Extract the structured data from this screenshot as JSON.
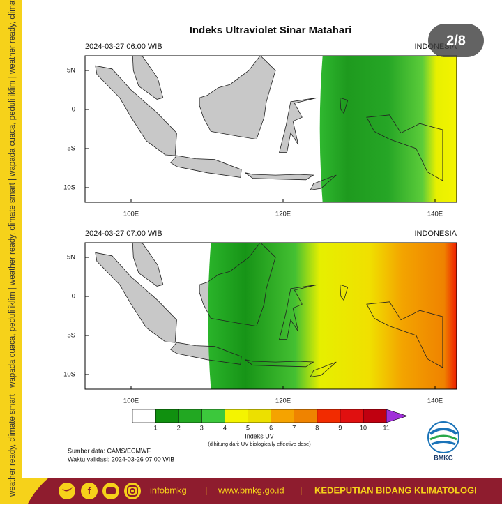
{
  "side_banner": "weather ready, climate smart | wapada cuaca, peduli iklim | weather ready, climate smart | wapada cuaca, peduli iklim | weather ready, climate smart | wapada cuaca, peduli iklim",
  "title": "Indeks Ultraviolet Sinar Matahari",
  "page_indicator": "2/8",
  "panels": [
    {
      "time": "2024-03-27  06:00 WIB",
      "region": "INDONESIA",
      "lat_labels": [
        "5N",
        "0",
        "5S",
        "10S"
      ],
      "lon_labels": [
        "100E",
        "120E",
        "140E"
      ]
    },
    {
      "time": "2024-03-27  07:00 WIB",
      "region": "INDONESIA",
      "lat_labels": [
        "5N",
        "0",
        "5S",
        "10S"
      ],
      "lon_labels": [
        "100E",
        "120E",
        "140E"
      ]
    }
  ],
  "colorbar": {
    "colors": [
      "#ffffff",
      "#10900f",
      "#22a822",
      "#3cc83c",
      "#f4f400",
      "#ece000",
      "#f5a300",
      "#ef8300",
      "#f22b00",
      "#e01010",
      "#c00010"
    ],
    "arrow_color": "#a030d8",
    "labels": [
      1,
      2,
      3,
      4,
      5,
      6,
      7,
      8,
      9,
      10,
      11
    ],
    "title": "Indeks UV",
    "note": "(dihitung dari: UV biologically effective dose)"
  },
  "source": "Sumber data: CAMS/ECMWF",
  "validity": "Waktu validasi: 2024-03-26 07:00 WIB",
  "logo_text": "BMKG",
  "footer": {
    "handle": "infobmkg",
    "separator": "|",
    "website": "www.bmkg.go.id",
    "department": "KEDEPUTIAN BIDANG KLIMATOLOGI"
  }
}
